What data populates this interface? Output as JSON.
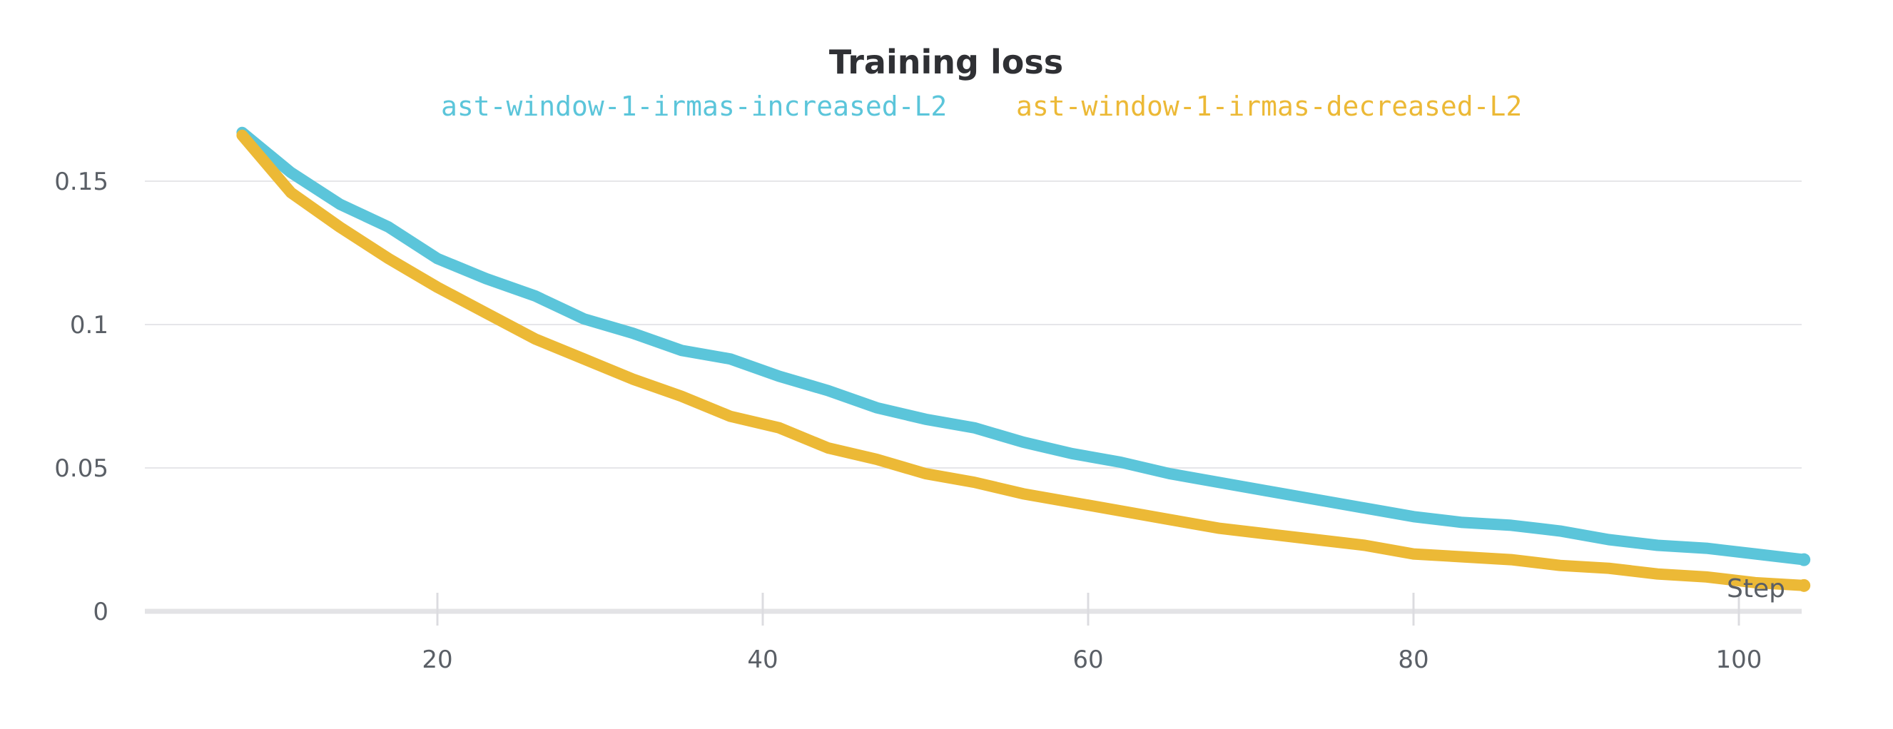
{
  "chart_data": {
    "type": "line",
    "title": "Training loss",
    "xlabel": "Step",
    "ylabel": "",
    "xlim": [
      1,
      105
    ],
    "ylim": [
      0,
      0.17
    ],
    "x_ticks": [
      20,
      40,
      60,
      80,
      100
    ],
    "x_tick_labels": [
      "20",
      "40",
      "60",
      "80",
      "100"
    ],
    "y_ticks": [
      0,
      0.05,
      0.1,
      0.15
    ],
    "y_tick_labels": [
      "0",
      "0.05",
      "0.1",
      "0.15"
    ],
    "grid": "horizontal",
    "legend_position": "top",
    "series": [
      {
        "name": "ast-window-1-irmas-increased-L2",
        "color": "#5bc5da",
        "x": [
          8,
          11,
          14,
          17,
          20,
          23,
          26,
          29,
          32,
          35,
          38,
          41,
          44,
          47,
          50,
          53,
          56,
          59,
          62,
          65,
          68,
          71,
          74,
          77,
          80,
          83,
          86,
          89,
          92,
          95,
          98,
          101,
          104
        ],
        "y": [
          0.167,
          0.153,
          0.142,
          0.134,
          0.123,
          0.116,
          0.11,
          0.102,
          0.097,
          0.091,
          0.088,
          0.082,
          0.077,
          0.071,
          0.067,
          0.064,
          0.059,
          0.055,
          0.052,
          0.048,
          0.045,
          0.042,
          0.039,
          0.036,
          0.033,
          0.031,
          0.03,
          0.028,
          0.025,
          0.023,
          0.022,
          0.02,
          0.018
        ]
      },
      {
        "name": "ast-window-1-irmas-decreased-L2",
        "color": "#ecb936",
        "x": [
          8,
          11,
          14,
          17,
          20,
          23,
          26,
          29,
          32,
          35,
          38,
          41,
          44,
          47,
          50,
          53,
          56,
          59,
          62,
          65,
          68,
          71,
          74,
          77,
          80,
          83,
          86,
          89,
          92,
          95,
          98,
          101,
          104
        ],
        "y": [
          0.166,
          0.146,
          0.134,
          0.123,
          0.113,
          0.104,
          0.095,
          0.088,
          0.081,
          0.075,
          0.068,
          0.064,
          0.057,
          0.053,
          0.048,
          0.045,
          0.041,
          0.038,
          0.035,
          0.032,
          0.029,
          0.027,
          0.025,
          0.023,
          0.02,
          0.019,
          0.018,
          0.016,
          0.015,
          0.013,
          0.012,
          0.01,
          0.009
        ]
      }
    ]
  }
}
